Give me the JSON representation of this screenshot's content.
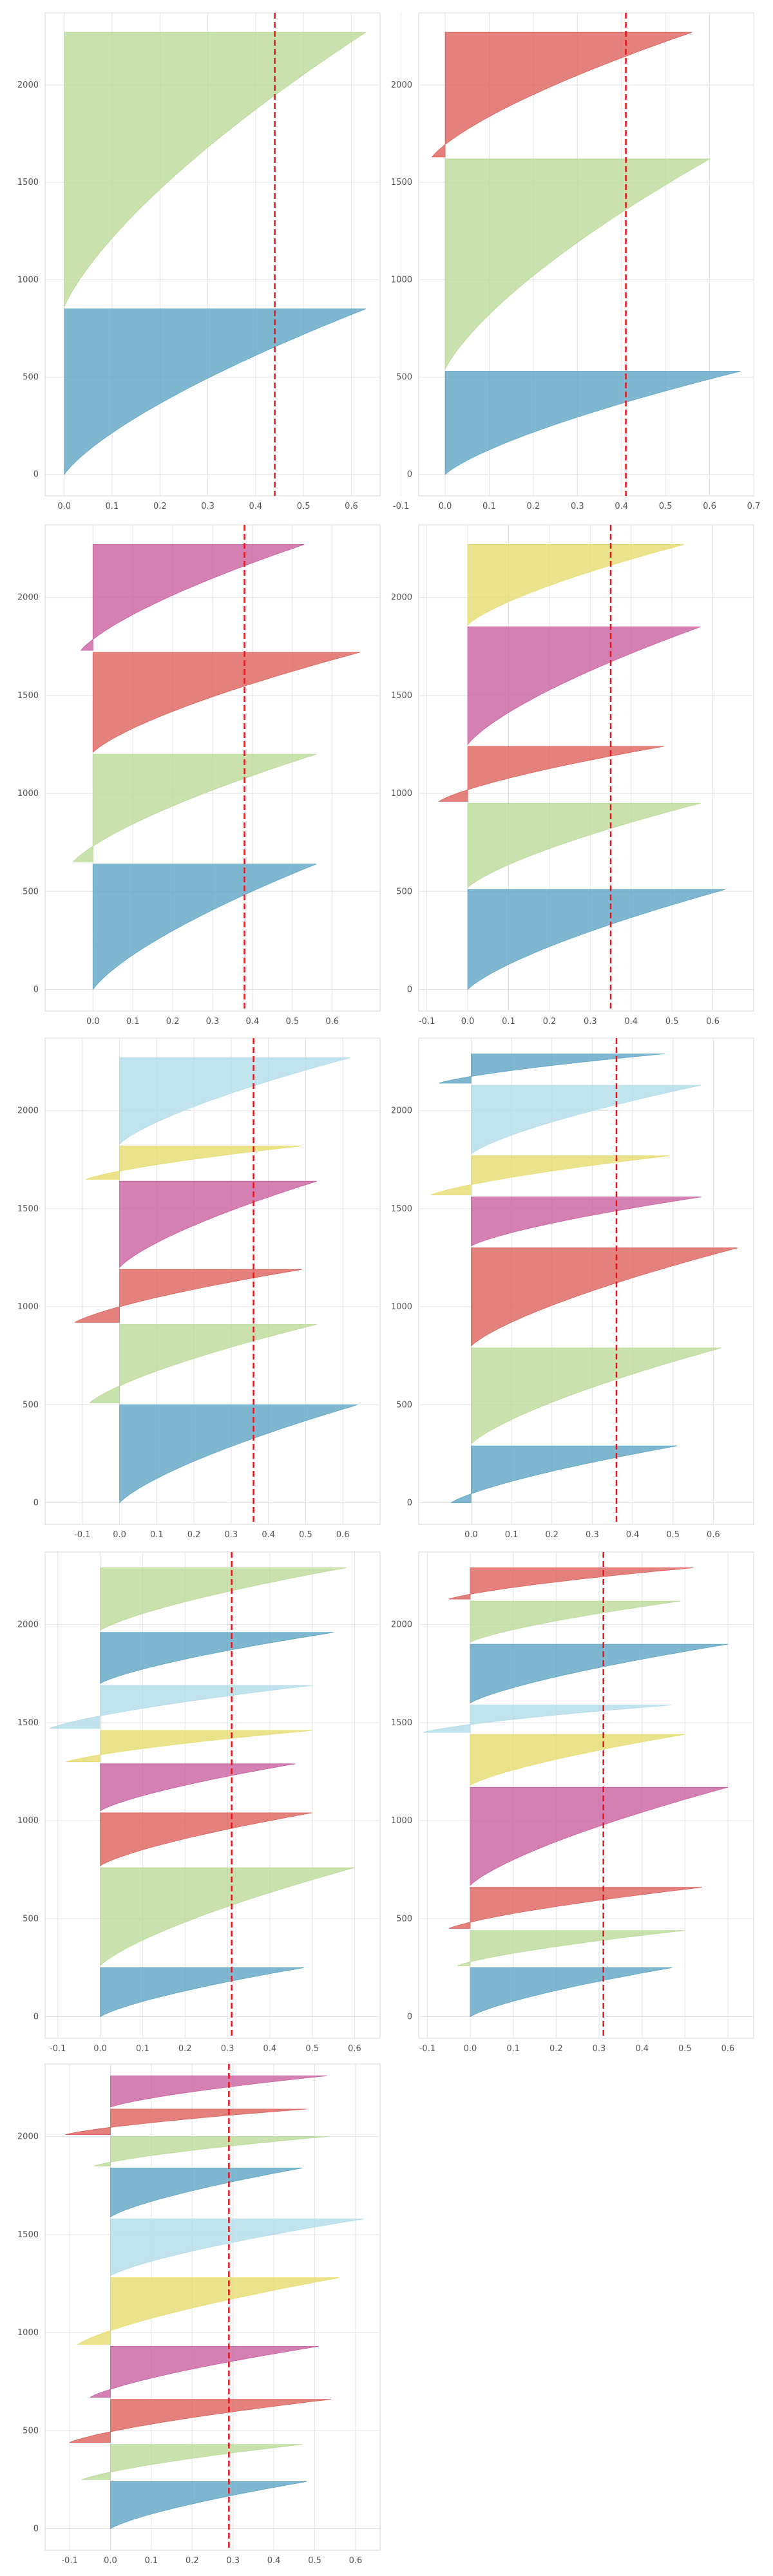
{
  "palette": [
    "#5ba3c4",
    "#b9d896",
    "#dd5e59",
    "#c85c9c",
    "#e5db6a",
    "#b0dbe8"
  ],
  "chart_data": [
    {
      "type": "area",
      "title": "",
      "xlabel": "",
      "ylabel": "",
      "xlim": [
        -0.04,
        0.66
      ],
      "ylim": [
        -110,
        2370
      ],
      "xticks": [
        0.0,
        0.1,
        0.2,
        0.3,
        0.4,
        0.5,
        0.6
      ],
      "yticks": [
        0,
        500,
        1000,
        1500,
        2000
      ],
      "mean_score": 0.44,
      "grid": true,
      "clusters": [
        {
          "color": "#5ba3c4",
          "y_start": 0,
          "y_end": 850,
          "min_score": 0.0,
          "max_score": 0.63
        },
        {
          "color": "#b9d896",
          "y_start": 860,
          "y_end": 2270,
          "min_score": 0.0,
          "max_score": 0.63
        }
      ]
    },
    {
      "type": "area",
      "title": "",
      "xlabel": "",
      "ylabel": "",
      "xlim": [
        -0.06,
        0.7
      ],
      "ylim": [
        -110,
        2370
      ],
      "xticks": [
        -0.1,
        0.0,
        0.1,
        0.2,
        0.3,
        0.4,
        0.5,
        0.6,
        0.7
      ],
      "yticks": [
        0,
        500,
        1000,
        1500,
        2000
      ],
      "mean_score": 0.41,
      "grid": true,
      "clusters": [
        {
          "color": "#5ba3c4",
          "y_start": 0,
          "y_end": 530,
          "min_score": 0.0,
          "max_score": 0.67
        },
        {
          "color": "#b9d896",
          "y_start": 540,
          "y_end": 1620,
          "min_score": 0.0,
          "max_score": 0.6
        },
        {
          "color": "#dd5e59",
          "y_start": 1630,
          "y_end": 2270,
          "min_score": -0.03,
          "max_score": 0.56
        }
      ]
    },
    {
      "type": "area",
      "title": "",
      "xlabel": "",
      "ylabel": "",
      "xlim": [
        -0.12,
        0.72
      ],
      "ylim": [
        -110,
        2370
      ],
      "xticks": [
        0.0,
        0.1,
        0.2,
        0.3,
        0.4,
        0.5,
        0.6
      ],
      "yticks": [
        0,
        500,
        1000,
        1500,
        2000
      ],
      "mean_score": 0.38,
      "grid": true,
      "clusters": [
        {
          "color": "#5ba3c4",
          "y_start": 0,
          "y_end": 640,
          "min_score": 0.0,
          "max_score": 0.56
        },
        {
          "color": "#b9d896",
          "y_start": 650,
          "y_end": 1200,
          "min_score": -0.05,
          "max_score": 0.56
        },
        {
          "color": "#dd5e59",
          "y_start": 1210,
          "y_end": 1720,
          "min_score": 0.0,
          "max_score": 0.67
        },
        {
          "color": "#c85c9c",
          "y_start": 1730,
          "y_end": 2270,
          "min_score": -0.03,
          "max_score": 0.53
        }
      ]
    },
    {
      "type": "area",
      "title": "",
      "xlabel": "",
      "ylabel": "",
      "xlim": [
        -0.12,
        0.7
      ],
      "ylim": [
        -110,
        2370
      ],
      "xticks": [
        -0.1,
        0.0,
        0.1,
        0.2,
        0.3,
        0.4,
        0.5,
        0.6
      ],
      "yticks": [
        0,
        500,
        1000,
        1500,
        2000
      ],
      "mean_score": 0.35,
      "grid": true,
      "clusters": [
        {
          "color": "#5ba3c4",
          "y_start": 0,
          "y_end": 510,
          "min_score": 0.0,
          "max_score": 0.63
        },
        {
          "color": "#b9d896",
          "y_start": 520,
          "y_end": 950,
          "min_score": 0.0,
          "max_score": 0.57
        },
        {
          "color": "#dd5e59",
          "y_start": 960,
          "y_end": 1240,
          "min_score": -0.07,
          "max_score": 0.48
        },
        {
          "color": "#c85c9c",
          "y_start": 1250,
          "y_end": 1850,
          "min_score": 0.0,
          "max_score": 0.57
        },
        {
          "color": "#e5db6a",
          "y_start": 1860,
          "y_end": 2270,
          "min_score": 0.0,
          "max_score": 0.53
        }
      ]
    },
    {
      "type": "area",
      "title": "",
      "xlabel": "",
      "ylabel": "",
      "xlim": [
        -0.2,
        0.7
      ],
      "ylim": [
        -110,
        2370
      ],
      "xticks": [
        -0.1,
        0.0,
        0.1,
        0.2,
        0.3,
        0.4,
        0.5,
        0.6
      ],
      "yticks": [
        0,
        500,
        1000,
        1500,
        2000
      ],
      "mean_score": 0.36,
      "grid": true,
      "clusters": [
        {
          "color": "#5ba3c4",
          "y_start": 0,
          "y_end": 500,
          "min_score": 0.0,
          "max_score": 0.64
        },
        {
          "color": "#b9d896",
          "y_start": 510,
          "y_end": 910,
          "min_score": -0.08,
          "max_score": 0.53
        },
        {
          "color": "#dd5e59",
          "y_start": 920,
          "y_end": 1190,
          "min_score": -0.12,
          "max_score": 0.49
        },
        {
          "color": "#c85c9c",
          "y_start": 1200,
          "y_end": 1640,
          "min_score": 0.0,
          "max_score": 0.53
        },
        {
          "color": "#e5db6a",
          "y_start": 1650,
          "y_end": 1820,
          "min_score": -0.09,
          "max_score": 0.49
        },
        {
          "color": "#b0dbe8",
          "y_start": 1830,
          "y_end": 2270,
          "min_score": 0.0,
          "max_score": 0.62
        }
      ]
    },
    {
      "type": "area",
      "title": "",
      "xlabel": "",
      "ylabel": "",
      "xlim": [
        -0.13,
        0.7
      ],
      "ylim": [
        -110,
        2370
      ],
      "xticks": [
        0.0,
        0.1,
        0.2,
        0.3,
        0.4,
        0.5,
        0.6
      ],
      "yticks": [
        0,
        500,
        1000,
        1500,
        2000
      ],
      "mean_score": 0.36,
      "grid": true,
      "clusters": [
        {
          "color": "#5ba3c4",
          "y_start": 0,
          "y_end": 290,
          "min_score": -0.05,
          "max_score": 0.51
        },
        {
          "color": "#b9d896",
          "y_start": 300,
          "y_end": 790,
          "min_score": 0.0,
          "max_score": 0.62
        },
        {
          "color": "#dd5e59",
          "y_start": 800,
          "y_end": 1300,
          "min_score": 0.0,
          "max_score": 0.66
        },
        {
          "color": "#c85c9c",
          "y_start": 1310,
          "y_end": 1560,
          "min_score": 0.0,
          "max_score": 0.57
        },
        {
          "color": "#e5db6a",
          "y_start": 1570,
          "y_end": 1770,
          "min_score": -0.1,
          "max_score": 0.49
        },
        {
          "color": "#b0dbe8",
          "y_start": 1780,
          "y_end": 2130,
          "min_score": 0.0,
          "max_score": 0.57
        },
        {
          "color": "#5ba3c4",
          "y_start": 2140,
          "y_end": 2290,
          "min_score": -0.08,
          "max_score": 0.48
        }
      ]
    },
    {
      "type": "area",
      "title": "",
      "xlabel": "",
      "ylabel": "",
      "xlim": [
        -0.13,
        0.66
      ],
      "ylim": [
        -110,
        2370
      ],
      "xticks": [
        -0.1,
        0.0,
        0.1,
        0.2,
        0.3,
        0.4,
        0.5,
        0.6
      ],
      "yticks": [
        0,
        500,
        1000,
        1500,
        2000
      ],
      "mean_score": 0.31,
      "grid": true,
      "clusters": [
        {
          "color": "#5ba3c4",
          "y_start": 0,
          "y_end": 250,
          "min_score": 0.0,
          "max_score": 0.48
        },
        {
          "color": "#b9d896",
          "y_start": 260,
          "y_end": 760,
          "min_score": 0.0,
          "max_score": 0.6
        },
        {
          "color": "#dd5e59",
          "y_start": 770,
          "y_end": 1040,
          "min_score": 0.0,
          "max_score": 0.5
        },
        {
          "color": "#c85c9c",
          "y_start": 1050,
          "y_end": 1290,
          "min_score": 0.0,
          "max_score": 0.46
        },
        {
          "color": "#e5db6a",
          "y_start": 1300,
          "y_end": 1460,
          "min_score": -0.08,
          "max_score": 0.5
        },
        {
          "color": "#b0dbe8",
          "y_start": 1470,
          "y_end": 1690,
          "min_score": -0.12,
          "max_score": 0.5
        },
        {
          "color": "#5ba3c4",
          "y_start": 1700,
          "y_end": 1960,
          "min_score": 0.0,
          "max_score": 0.55
        },
        {
          "color": "#b9d896",
          "y_start": 1970,
          "y_end": 2290,
          "min_score": 0.0,
          "max_score": 0.58
        }
      ]
    },
    {
      "type": "area",
      "title": "",
      "xlabel": "",
      "ylabel": "",
      "xlim": [
        -0.12,
        0.66
      ],
      "ylim": [
        -110,
        2370
      ],
      "xticks": [
        -0.1,
        0.0,
        0.1,
        0.2,
        0.3,
        0.4,
        0.5,
        0.6
      ],
      "yticks": [
        0,
        500,
        1000,
        1500,
        2000
      ],
      "mean_score": 0.31,
      "grid": true,
      "clusters": [
        {
          "color": "#5ba3c4",
          "y_start": 0,
          "y_end": 250,
          "min_score": 0.0,
          "max_score": 0.47
        },
        {
          "color": "#b9d896",
          "y_start": 260,
          "y_end": 440,
          "min_score": -0.03,
          "max_score": 0.5
        },
        {
          "color": "#dd5e59",
          "y_start": 450,
          "y_end": 660,
          "min_score": -0.05,
          "max_score": 0.54
        },
        {
          "color": "#c85c9c",
          "y_start": 670,
          "y_end": 1170,
          "min_score": 0.0,
          "max_score": 0.6
        },
        {
          "color": "#e5db6a",
          "y_start": 1180,
          "y_end": 1440,
          "min_score": 0.0,
          "max_score": 0.5
        },
        {
          "color": "#b0dbe8",
          "y_start": 1450,
          "y_end": 1590,
          "min_score": -0.11,
          "max_score": 0.47
        },
        {
          "color": "#5ba3c4",
          "y_start": 1600,
          "y_end": 1900,
          "min_score": 0.0,
          "max_score": 0.6
        },
        {
          "color": "#b9d896",
          "y_start": 1910,
          "y_end": 2120,
          "min_score": 0.0,
          "max_score": 0.49
        },
        {
          "color": "#dd5e59",
          "y_start": 2130,
          "y_end": 2290,
          "min_score": -0.05,
          "max_score": 0.52
        }
      ]
    },
    {
      "type": "area",
      "title": "",
      "xlabel": "",
      "ylabel": "",
      "xlim": [
        -0.16,
        0.66
      ],
      "ylim": [
        -110,
        2370
      ],
      "xticks": [
        -0.1,
        0.0,
        0.1,
        0.2,
        0.3,
        0.4,
        0.5,
        0.6
      ],
      "yticks": [
        0,
        500,
        1000,
        1500,
        2000
      ],
      "mean_score": 0.29,
      "grid": true,
      "clusters": [
        {
          "color": "#5ba3c4",
          "y_start": 0,
          "y_end": 240,
          "min_score": 0.0,
          "max_score": 0.48
        },
        {
          "color": "#b9d896",
          "y_start": 250,
          "y_end": 430,
          "min_score": -0.07,
          "max_score": 0.47
        },
        {
          "color": "#dd5e59",
          "y_start": 440,
          "y_end": 660,
          "min_score": -0.1,
          "max_score": 0.54
        },
        {
          "color": "#c85c9c",
          "y_start": 670,
          "y_end": 930,
          "min_score": -0.05,
          "max_score": 0.51
        },
        {
          "color": "#e5db6a",
          "y_start": 940,
          "y_end": 1280,
          "min_score": -0.08,
          "max_score": 0.56
        },
        {
          "color": "#b0dbe8",
          "y_start": 1290,
          "y_end": 1580,
          "min_score": 0.0,
          "max_score": 0.62
        },
        {
          "color": "#5ba3c4",
          "y_start": 1590,
          "y_end": 1840,
          "min_score": 0.0,
          "max_score": 0.47
        },
        {
          "color": "#b9d896",
          "y_start": 1850,
          "y_end": 2000,
          "min_score": -0.04,
          "max_score": 0.53
        },
        {
          "color": "#dd5e59",
          "y_start": 2010,
          "y_end": 2140,
          "min_score": -0.11,
          "max_score": 0.48
        },
        {
          "color": "#c85c9c",
          "y_start": 2150,
          "y_end": 2310,
          "min_score": 0.0,
          "max_score": 0.53
        }
      ]
    }
  ]
}
